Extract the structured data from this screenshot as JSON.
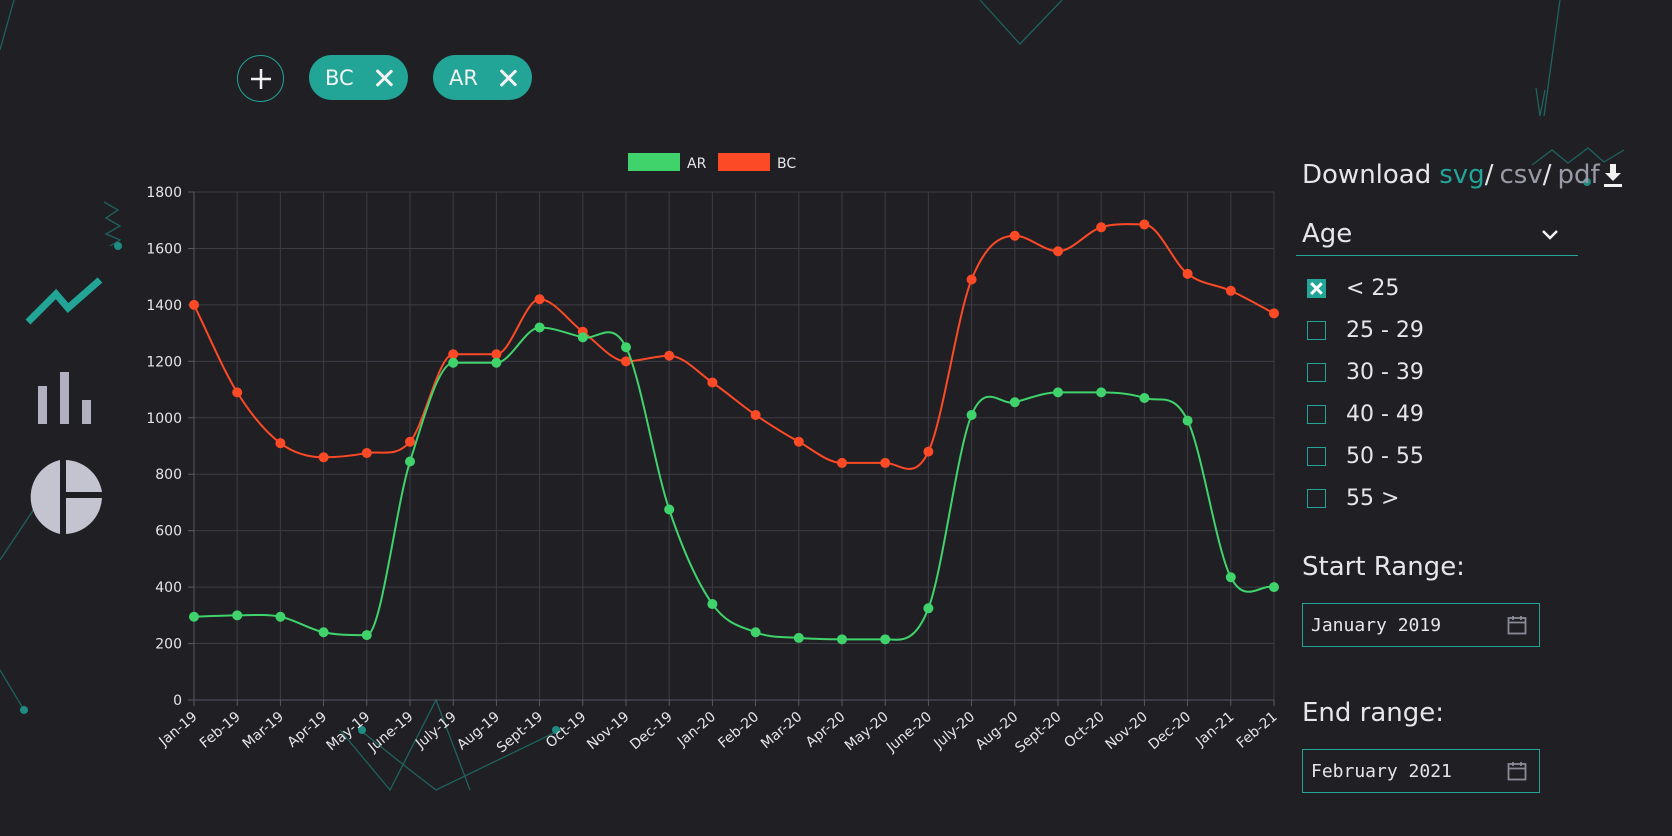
{
  "toolbar": {
    "add_icon": "plus-icon",
    "chips": [
      {
        "label": "BC",
        "remove_icon": "close-icon"
      },
      {
        "label": "AR",
        "remove_icon": "close-icon"
      }
    ]
  },
  "nav": {
    "items": [
      {
        "icon": "line-chart-icon",
        "active": true,
        "color": "#22a597"
      },
      {
        "icon": "bar-chart-icon",
        "active": false,
        "color": "#b0b0c0"
      },
      {
        "icon": "pie-chart-icon",
        "active": false,
        "color": "#c4c4d0"
      }
    ]
  },
  "download": {
    "label": "Download",
    "formats": [
      {
        "label": "svg",
        "active": true
      },
      {
        "label": "csv",
        "active": false
      },
      {
        "label": "pdf",
        "active": false
      }
    ],
    "separator": "/",
    "icon": "download-icon"
  },
  "filter": {
    "selected": "Age",
    "icon": "chevron-down-icon",
    "options": [
      {
        "label": "< 25",
        "checked": true
      },
      {
        "label": "25 - 29",
        "checked": false
      },
      {
        "label": "30 - 39",
        "checked": false
      },
      {
        "label": "40 - 49",
        "checked": false
      },
      {
        "label": "50 - 55",
        "checked": false
      },
      {
        "label": "55 >",
        "checked": false
      }
    ]
  },
  "range": {
    "start_label": "Start Range:",
    "start_value": "January 2019",
    "end_label": "End range:",
    "end_value": "February 2021",
    "calendar_icon": "calendar-icon"
  },
  "colors": {
    "accent": "#22a597",
    "background": "#1f1f24",
    "ar": "#40d36c",
    "bc": "#fc4a27"
  },
  "chart_data": {
    "type": "line",
    "title": "",
    "xlabel": "",
    "ylabel": "",
    "ylim": [
      0,
      1800
    ],
    "yticks": [
      0,
      200,
      400,
      600,
      800,
      1000,
      1200,
      1400,
      1600,
      1800
    ],
    "grid": true,
    "legend": "top-center",
    "categories": [
      "Jan-19",
      "Feb-19",
      "Mar-19",
      "Apr-19",
      "May-19",
      "June-19",
      "July-19",
      "Aug-19",
      "Sept-19",
      "Oct-19",
      "Nov-19",
      "Dec-19",
      "Jan-20",
      "Feb-20",
      "Mar-20",
      "Apr-20",
      "May-20",
      "June-20",
      "July-20",
      "Aug-20",
      "Sept-20",
      "Oct-20",
      "Nov-20",
      "Dec-20",
      "Jan-21",
      "Feb-21"
    ],
    "series": [
      {
        "name": "AR",
        "color": "#40d36c",
        "values": [
          295,
          300,
          295,
          240,
          230,
          845,
          1195,
          1195,
          1320,
          1285,
          1250,
          675,
          340,
          240,
          220,
          215,
          215,
          325,
          1010,
          1055,
          1090,
          1090,
          1070,
          990,
          435,
          400
        ]
      },
      {
        "name": "BC",
        "color": "#fc4a27",
        "values": [
          1400,
          1090,
          910,
          860,
          875,
          915,
          1225,
          1225,
          1420,
          1305,
          1200,
          1220,
          1125,
          1010,
          915,
          840,
          840,
          880,
          1490,
          1645,
          1590,
          1675,
          1685,
          1510,
          1450,
          1370
        ]
      }
    ]
  }
}
